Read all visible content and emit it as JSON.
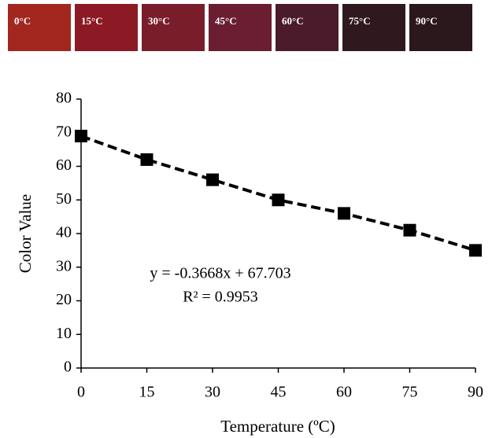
{
  "swatches": [
    {
      "label": "0°C",
      "color": "#a3261f"
    },
    {
      "label": "15°C",
      "color": "#8c1a24"
    },
    {
      "label": "30°C",
      "color": "#7a1d2b"
    },
    {
      "label": "45°C",
      "color": "#6b1e31"
    },
    {
      "label": "60°C",
      "color": "#4b1a2b"
    },
    {
      "label": "75°C",
      "color": "#30191e"
    },
    {
      "label": "90°C",
      "color": "#2a181c"
    }
  ],
  "chart_data": {
    "type": "line",
    "x_label": "Temperature (ºC)",
    "y_label": "Color Value",
    "x": [
      0,
      15,
      30,
      45,
      60,
      75,
      90
    ],
    "values": [
      69,
      62,
      56,
      50,
      46,
      41,
      35
    ],
    "color": "#000000",
    "xlim": [
      0,
      90
    ],
    "xticks": [
      0,
      15,
      30,
      45,
      60,
      75,
      90
    ],
    "ylim": [
      0,
      80
    ],
    "yticks": [
      0,
      10,
      20,
      30,
      40,
      50,
      60,
      70,
      80
    ],
    "annotations": [
      "y = -0.3668x + 67.703",
      "R² = 0.9953"
    ]
  }
}
